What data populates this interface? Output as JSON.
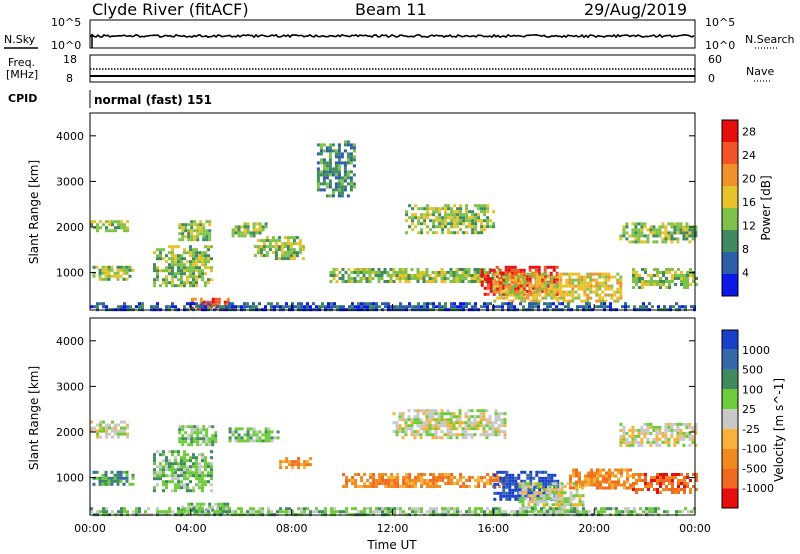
{
  "header": {
    "station": "Clyde River (fitACF)",
    "beam": "Beam 11",
    "date": "29/Aug/2019"
  },
  "top_panels": {
    "nsky_label": "N.Sky",
    "nsearch_label": "N.Search",
    "nsky_ticks": [
      "10^5",
      "10^0"
    ],
    "nsearch_ticks": [
      "10^5",
      "10^0"
    ],
    "freq_label_line1": "Freq.",
    "freq_label_line2": "[MHz]",
    "freq_ticks": [
      "18",
      "8"
    ],
    "nave_label": "Nave",
    "nave_ticks": [
      "60",
      "0"
    ],
    "cpid_label": "CPID",
    "cpid_value": "normal (fast) 151"
  },
  "colors": {
    "power_scale": [
      "#0b19e6",
      "#2d5ea8",
      "#3f8a5f",
      "#7fc24a",
      "#e8c22a",
      "#f0922b",
      "#f2552a",
      "#e60d0d"
    ],
    "velocity_scale": [
      "#1a3fc8",
      "#3768a8",
      "#3f8a5f",
      "#6dcc3a",
      "#c8c8c8",
      "#f7b23a",
      "#f08a1f",
      "#f26a20",
      "#e60d0d"
    ]
  },
  "chart_data": [
    {
      "type": "heatmap",
      "panel": "power",
      "xlabel": "",
      "ylabel": "Slant Range [km]",
      "x_ticks": [
        "00:00",
        "04:00",
        "08:00",
        "12:00",
        "16:00",
        "20:00",
        "00:00"
      ],
      "x_range_hours": [
        0,
        24
      ],
      "y_ticks": [
        1000,
        2000,
        3000,
        4000
      ],
      "ylim": [
        180,
        4500
      ],
      "colorbar": {
        "label": "Power [dB]",
        "ticks": [
          4,
          8,
          12,
          16,
          20,
          24,
          28
        ],
        "range": [
          0,
          30
        ]
      },
      "echo_regions": [
        {
          "t": [
            0.0,
            1.5
          ],
          "r": [
            1950,
            2150
          ],
          "level": 3
        },
        {
          "t": [
            0.1,
            1.7
          ],
          "r": [
            850,
            1150
          ],
          "level": 3
        },
        {
          "t": [
            2.5,
            4.8
          ],
          "r": [
            700,
            1600
          ],
          "level": 3
        },
        {
          "t": [
            3.5,
            4.8
          ],
          "r": [
            1700,
            2150
          ],
          "level": 3
        },
        {
          "t": [
            4.0,
            5.5
          ],
          "r": [
            200,
            450
          ],
          "level": 6
        },
        {
          "t": [
            5.5,
            7.0
          ],
          "r": [
            1800,
            2100
          ],
          "level": 3
        },
        {
          "t": [
            6.5,
            8.5
          ],
          "r": [
            1300,
            1800
          ],
          "level": 3
        },
        {
          "t": [
            9.0,
            10.5
          ],
          "r": [
            2700,
            3900
          ],
          "level": 2
        },
        {
          "t": [
            12.5,
            16.0
          ],
          "r": [
            1900,
            2500
          ],
          "level": 3
        },
        {
          "t": [
            9.5,
            17.0
          ],
          "r": [
            800,
            1100
          ],
          "level": 3
        },
        {
          "t": [
            15.5,
            18.5
          ],
          "r": [
            550,
            1150
          ],
          "level": 7
        },
        {
          "t": [
            16.0,
            21.0
          ],
          "r": [
            350,
            1000
          ],
          "level": 4
        },
        {
          "t": [
            21.0,
            24.0
          ],
          "r": [
            1700,
            2100
          ],
          "level": 3
        },
        {
          "t": [
            21.5,
            24.0
          ],
          "r": [
            700,
            1100
          ],
          "level": 3
        },
        {
          "t": [
            0.0,
            24.0
          ],
          "r": [
            180,
            350
          ],
          "level": 1
        }
      ]
    },
    {
      "type": "heatmap",
      "panel": "velocity",
      "xlabel": "Time UT",
      "ylabel": "Slant Range [km]",
      "x_ticks": [
        "00:00",
        "04:00",
        "08:00",
        "12:00",
        "16:00",
        "20:00",
        "00:00"
      ],
      "x_range_hours": [
        0,
        24
      ],
      "y_ticks": [
        1000,
        2000,
        3000,
        4000
      ],
      "ylim": [
        180,
        4500
      ],
      "colorbar": {
        "label": "Velocity [m s^-1]",
        "ticks": [
          "1000",
          "500",
          "100",
          "25",
          "-25",
          "-100",
          "-500",
          "-1000"
        ]
      },
      "echo_regions": [
        {
          "t": [
            0.0,
            1.5
          ],
          "r": [
            1900,
            2250
          ],
          "level": 4
        },
        {
          "t": [
            0.1,
            1.7
          ],
          "r": [
            850,
            1150
          ],
          "level": 2
        },
        {
          "t": [
            2.5,
            4.8
          ],
          "r": [
            700,
            1600
          ],
          "level": 3
        },
        {
          "t": [
            3.5,
            5.0
          ],
          "r": [
            1700,
            2150
          ],
          "level": 3
        },
        {
          "t": [
            3.5,
            5.5
          ],
          "r": [
            200,
            450
          ],
          "level": 3
        },
        {
          "t": [
            5.5,
            7.5
          ],
          "r": [
            1800,
            2100
          ],
          "level": 3
        },
        {
          "t": [
            7.5,
            8.8
          ],
          "r": [
            1250,
            1450
          ],
          "level": 6
        },
        {
          "t": [
            12.0,
            16.5
          ],
          "r": [
            1900,
            2500
          ],
          "level": 4
        },
        {
          "t": [
            10.0,
            16.5
          ],
          "r": [
            800,
            1100
          ],
          "level": 6
        },
        {
          "t": [
            16.0,
            18.5
          ],
          "r": [
            550,
            1150
          ],
          "level": 0
        },
        {
          "t": [
            17.0,
            19.5
          ],
          "r": [
            300,
            900
          ],
          "level": 4
        },
        {
          "t": [
            19.0,
            21.5
          ],
          "r": [
            800,
            1200
          ],
          "level": 6
        },
        {
          "t": [
            21.0,
            24.0
          ],
          "r": [
            1700,
            2200
          ],
          "level": 4
        },
        {
          "t": [
            21.5,
            24.0
          ],
          "r": [
            700,
            1100
          ],
          "level": 7
        },
        {
          "t": [
            0.0,
            24.0
          ],
          "r": [
            180,
            350
          ],
          "level": 3
        }
      ]
    }
  ]
}
